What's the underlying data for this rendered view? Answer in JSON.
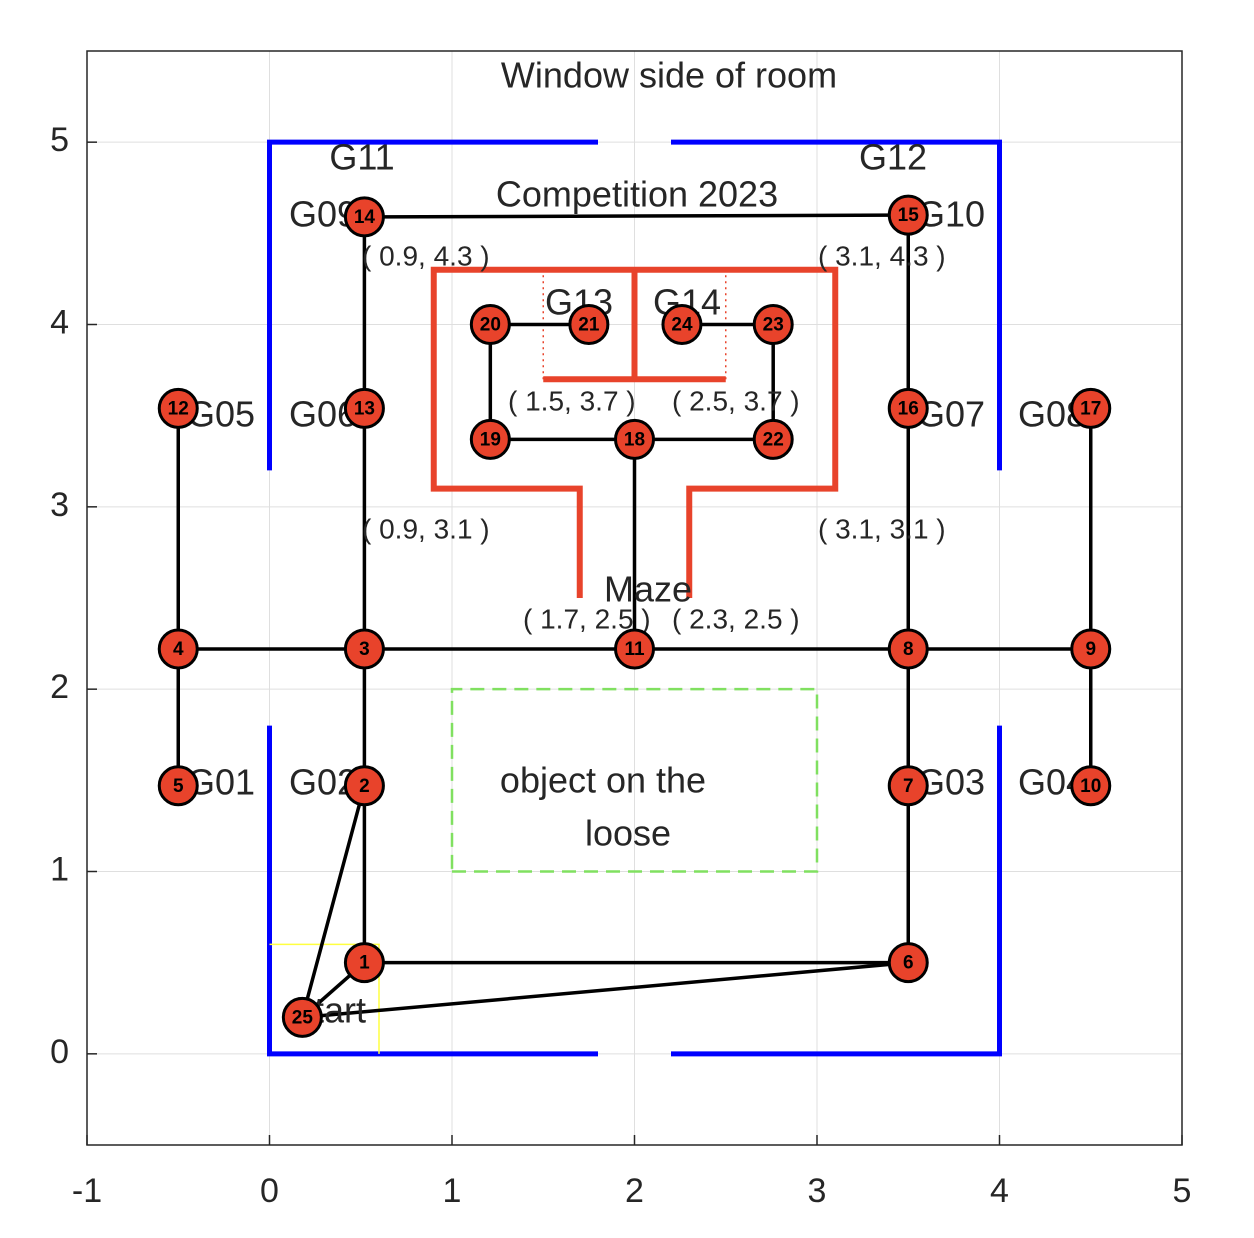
{
  "chart_data": {
    "type": "network",
    "xlim": [
      -1,
      5
    ],
    "ylim": [
      -0.5,
      5.5
    ],
    "xticks": [
      -1,
      0,
      1,
      2,
      3,
      4,
      5
    ],
    "yticks": [
      0,
      1,
      2,
      3,
      4,
      5
    ],
    "grid": true,
    "nodes": {
      "color": "#e8432b",
      "labels": [
        1,
        2,
        3,
        4,
        5,
        6,
        7,
        8,
        9,
        10,
        11,
        12,
        13,
        14,
        15,
        16,
        17,
        18,
        19,
        20,
        21,
        22,
        23,
        24,
        25
      ],
      "x": [
        0.52,
        0.52,
        0.52,
        -0.5,
        -0.5,
        3.5,
        3.5,
        3.5,
        4.5,
        4.5,
        2.0,
        -0.5,
        0.52,
        0.52,
        3.5,
        3.5,
        4.5,
        2.0,
        1.21,
        1.21,
        1.75,
        2.76,
        2.76,
        2.26,
        0.18
      ],
      "y": [
        0.5,
        1.47,
        2.22,
        2.22,
        1.47,
        0.5,
        1.47,
        2.22,
        2.22,
        1.47,
        2.22,
        3.54,
        3.54,
        4.59,
        4.6,
        3.54,
        3.54,
        3.37,
        3.37,
        4.0,
        4.0,
        3.37,
        4.0,
        4.0,
        0.2
      ]
    },
    "edges": [
      [
        1,
        2
      ],
      [
        1,
        6
      ],
      [
        1,
        25
      ],
      [
        2,
        25
      ],
      [
        2,
        3
      ],
      [
        3,
        4
      ],
      [
        4,
        5
      ],
      [
        4,
        12
      ],
      [
        3,
        13
      ],
      [
        13,
        14
      ],
      [
        14,
        15
      ],
      [
        3,
        11
      ],
      [
        11,
        8
      ],
      [
        8,
        9
      ],
      [
        9,
        10
      ],
      [
        9,
        17
      ],
      [
        8,
        7
      ],
      [
        7,
        6
      ],
      [
        8,
        16
      ],
      [
        16,
        15
      ],
      [
        11,
        18
      ],
      [
        18,
        19
      ],
      [
        18,
        22
      ],
      [
        19,
        20
      ],
      [
        20,
        21
      ],
      [
        22,
        23
      ],
      [
        23,
        24
      ],
      [
        6,
        25
      ]
    ],
    "edge_color": "#000000",
    "shapes": [
      {
        "color": "#0000ff",
        "style": "solid",
        "x": [
          0,
          0,
          1.8
        ],
        "y": [
          3.2,
          5,
          5
        ]
      },
      {
        "color": "#0000ff",
        "style": "solid",
        "x": [
          2.2,
          4,
          4
        ],
        "y": [
          5,
          5,
          3.2
        ]
      },
      {
        "color": "#0000ff",
        "style": "solid",
        "x": [
          0,
          0,
          1.8
        ],
        "y": [
          1.8,
          0,
          0
        ]
      },
      {
        "color": "#0000ff",
        "style": "solid",
        "x": [
          2.2,
          4,
          4
        ],
        "y": [
          0,
          0,
          1.8
        ]
      },
      {
        "color": "#e8432b",
        "style": "solid",
        "x": [
          1.7,
          1.7,
          0.9,
          0.9,
          3.1,
          3.1,
          2.3,
          2.3
        ],
        "y": [
          2.5,
          3.1,
          3.1,
          4.3,
          4.3,
          3.1,
          3.1,
          2.5
        ]
      },
      {
        "color": "#e8432b",
        "style": "solid",
        "x": [
          2,
          2
        ],
        "y": [
          4.3,
          3.7
        ]
      },
      {
        "color": "#e8432b",
        "style": "solid",
        "x": [
          1.5,
          2.5
        ],
        "y": [
          3.7,
          3.7
        ]
      },
      {
        "color": "#e8432b",
        "style": "dotted",
        "x": [
          1.5,
          1.5
        ],
        "y": [
          3.7,
          4.3
        ]
      },
      {
        "color": "#e8432b",
        "style": "dotted",
        "x": [
          2.5,
          2.5
        ],
        "y": [
          3.7,
          4.3
        ]
      },
      {
        "color": "#80e060",
        "style": "dashed",
        "x": [
          1,
          3,
          3,
          1,
          1
        ],
        "y": [
          1,
          1,
          2,
          2,
          1
        ]
      },
      {
        "color": "#ffff40",
        "style": "thin",
        "x": [
          0,
          0.6,
          0.6
        ],
        "y": [
          0.6,
          0.6,
          0
        ]
      }
    ],
    "annotations": [
      "Window side of room",
      "Competition 2023",
      "G11",
      "G12",
      "G09",
      "G10",
      "G05",
      "G06",
      "G07",
      "G08",
      "G01",
      "G02",
      "G03",
      "G04",
      "G13",
      "G14",
      "Maze",
      "object on the",
      "loose",
      "Start",
      "( 0.9, 4.3 )",
      "( 3.1, 4.3 )",
      "( 1.5, 3.7 )",
      "( 2.5, 3.7 )",
      "( 0.9, 3.1 )",
      "( 3.1, 3.1 )",
      "( 1.7, 2.5 )",
      "( 2.3, 2.5 )"
    ]
  }
}
